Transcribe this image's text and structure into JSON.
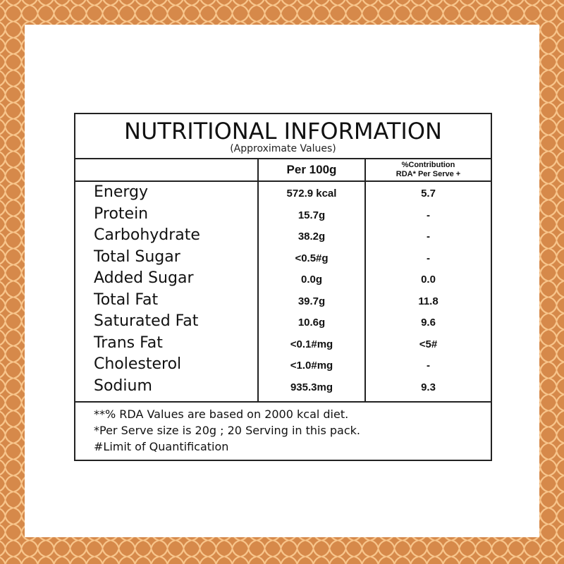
{
  "colors": {
    "border": "#D6894A",
    "pattern": "#F7C48A",
    "line": "#222222"
  },
  "title": "NUTRITIONAL INFORMATION",
  "subtitle": "(Approximate Values)",
  "headers": {
    "per100": "Per 100g",
    "rda_line1": "%Contribution",
    "rda_line2": "RDA* Per Serve +"
  },
  "rows": [
    {
      "name": "Energy",
      "per100": "572.9 kcal",
      "rda": "5.7"
    },
    {
      "name": "Protein",
      "per100": "15.7g",
      "rda": "-"
    },
    {
      "name": "Carbohydrate",
      "per100": "38.2g",
      "rda": "-"
    },
    {
      "name": "Total Sugar",
      "per100": "<0.5#g",
      "rda": "-"
    },
    {
      "name": "Added Sugar",
      "per100": "0.0g",
      "rda": "0.0"
    },
    {
      "name": "Total Fat",
      "per100": "39.7g",
      "rda": "11.8"
    },
    {
      "name": "Saturated Fat",
      "per100": "10.6g",
      "rda": "9.6"
    },
    {
      "name": "Trans Fat",
      "per100": "<0.1#mg",
      "rda": "<5#"
    },
    {
      "name": "Cholesterol",
      "per100": "<1.0#mg",
      "rda": "-"
    },
    {
      "name": "Sodium",
      "per100": "935.3mg",
      "rda": "9.3"
    }
  ],
  "footnotes": [
    "**% RDA Values are based on 2000 kcal diet.",
    "*Per Serve size is 20g ; 20 Serving in this pack.",
    "#Limit of Quantification"
  ]
}
